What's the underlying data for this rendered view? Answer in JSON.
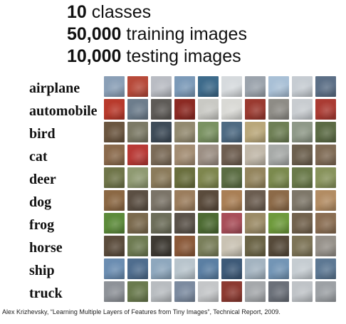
{
  "header": {
    "line1": {
      "num": "10",
      "text": " classes"
    },
    "line2": {
      "num": "50,000",
      "text": " training images"
    },
    "line3": {
      "num": "10,000",
      "text": " testing images"
    }
  },
  "classes": [
    {
      "label": "airplane",
      "colors": [
        "#8a9fb6",
        "#b74a3a",
        "#b9bcc3",
        "#7c9ab8",
        "#3e6b8b",
        "#d6dadd",
        "#9ba3ac",
        "#a9c0d6",
        "#c6ccd2",
        "#5c6f86"
      ]
    },
    {
      "label": "automobile",
      "colors": [
        "#b83a2c",
        "#6d7d8c",
        "#5e5b57",
        "#8c2a23",
        "#c9c9c4",
        "#d9d9d5",
        "#9a3a30",
        "#8e8c86",
        "#c8ccd0",
        "#aa3b33"
      ]
    },
    {
      "label": "bird",
      "colors": [
        "#6b5640",
        "#7c7a66",
        "#3e4b58",
        "#938a70",
        "#7a9262",
        "#4e6a82",
        "#b9a77a",
        "#6e7f55",
        "#8f9988",
        "#5c6b45"
      ]
    },
    {
      "label": "cat",
      "colors": [
        "#8a6a4c",
        "#b83a36",
        "#7b6b58",
        "#a38d73",
        "#9c8f84",
        "#6e5e50",
        "#c0b7a8",
        "#a7aaa8",
        "#6c604e",
        "#7f6b55"
      ]
    },
    {
      "label": "deer",
      "colors": [
        "#6f7549",
        "#8f9a72",
        "#8b7b5b",
        "#6a6f3e",
        "#7e864e",
        "#5b6d43",
        "#94855e",
        "#7b8a4e",
        "#6a7a4a",
        "#88935c"
      ]
    },
    {
      "label": "dog",
      "colors": [
        "#8b6844",
        "#5b4f43",
        "#7b7468",
        "#9b7d5d",
        "#5a4b3c",
        "#a97f55",
        "#6b5d50",
        "#8c6a48",
        "#7e7769",
        "#b28c63"
      ]
    },
    {
      "label": "frog",
      "colors": [
        "#5c8a3a",
        "#7b6a4e",
        "#6d6e5a",
        "#5a5249",
        "#4d6b33",
        "#a84e59",
        "#9b8b66",
        "#6e9a3c",
        "#72624d",
        "#8a6e53"
      ]
    },
    {
      "label": "horse",
      "colors": [
        "#5b4c3c",
        "#6e7b52",
        "#3e3a33",
        "#8b5a3a",
        "#7a7f5b",
        "#c9c2b3",
        "#6b6446",
        "#564a3a",
        "#7d7457",
        "#96918a"
      ]
    },
    {
      "label": "ship",
      "colors": [
        "#6b8db1",
        "#4f6d8e",
        "#8ea7bd",
        "#b8c4cc",
        "#5b7fa3",
        "#3e5a78",
        "#a3b3c0",
        "#7395b5",
        "#c5ccd1",
        "#5d7893"
      ]
    },
    {
      "label": "truck",
      "colors": [
        "#8e9298",
        "#6a7a4e",
        "#b8bcc0",
        "#7c8ba0",
        "#c4c6c8",
        "#8c3a31",
        "#a5a8ab",
        "#6b7079",
        "#bfc3c7",
        "#9da1a5"
      ]
    }
  ],
  "citation": "Alex Krizhevsky, “Learning Multiple Layers of Features from Tiny Images”, Technical Report, 2009."
}
